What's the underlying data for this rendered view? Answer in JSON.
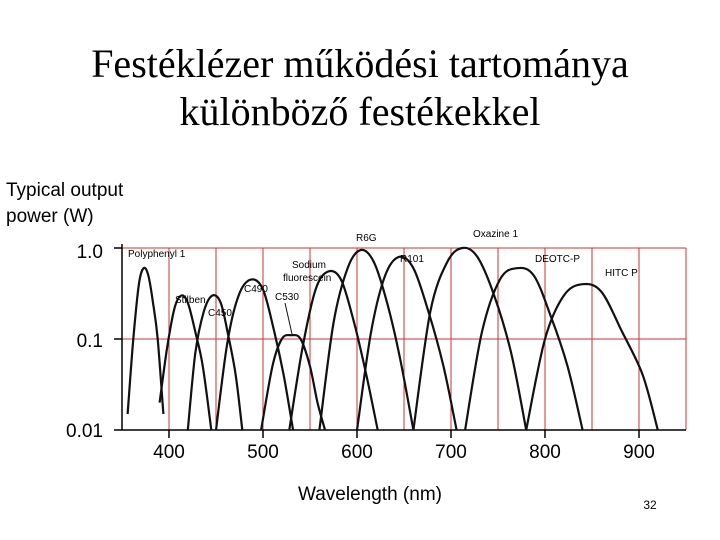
{
  "slide": {
    "title_line1": "Festéklézer működési tartománya",
    "title_line2": "különböző festékekkel",
    "page_number": "32"
  },
  "colors": {
    "grid": "#cc3333",
    "curve": "#111111",
    "text": "#000000"
  },
  "chart_data": {
    "type": "line",
    "title": "",
    "ylabel_lines": [
      "Typical output",
      "power (W)"
    ],
    "xlabel": "Wavelength (nm)",
    "yscale": "log",
    "ylim": [
      0.01,
      1.0
    ],
    "xlim": [
      350,
      950
    ],
    "yticks": [
      1.0,
      0.1,
      0.01
    ],
    "ytick_labels": [
      "1.0",
      "0.1",
      "0.01"
    ],
    "xticks": [
      400,
      500,
      600,
      700,
      800,
      900
    ],
    "xtick_labels": [
      "400",
      "500",
      "600",
      "700",
      "800",
      "900"
    ],
    "grid": true,
    "series": [
      {
        "name": "Polyphenyl 1",
        "x": [
          356,
          362,
          368,
          373,
          378,
          383,
          388,
          394
        ],
        "y": [
          0.015,
          0.1,
          0.4,
          0.6,
          0.5,
          0.25,
          0.1,
          0.015
        ]
      },
      {
        "name": "Stilben",
        "x": [
          390,
          398,
          406,
          413,
          420,
          428,
          436,
          445
        ],
        "y": [
          0.02,
          0.08,
          0.22,
          0.3,
          0.25,
          0.12,
          0.05,
          0.01
        ]
      },
      {
        "name": "C450",
        "x": [
          420,
          428,
          437,
          446,
          455,
          463,
          471,
          478
        ],
        "y": [
          0.01,
          0.07,
          0.2,
          0.3,
          0.25,
          0.11,
          0.04,
          0.01
        ]
      },
      {
        "name": "C490",
        "x": [
          450,
          462,
          474,
          487,
          500,
          512,
          522,
          532
        ],
        "y": [
          0.01,
          0.09,
          0.3,
          0.45,
          0.35,
          0.12,
          0.04,
          0.01
        ]
      },
      {
        "name": "C530",
        "x": [
          498,
          510,
          520,
          530,
          540,
          550,
          558,
          566
        ],
        "y": [
          0.01,
          0.05,
          0.1,
          0.11,
          0.1,
          0.05,
          0.02,
          0.01
        ]
      },
      {
        "name": "Sodium fluorescein",
        "x": [
          528,
          542,
          556,
          569,
          583,
          597,
          610,
          622
        ],
        "y": [
          0.01,
          0.08,
          0.35,
          0.55,
          0.45,
          0.15,
          0.04,
          0.01
        ]
      },
      {
        "name": "R6G",
        "x": [
          560,
          575,
          590,
          604,
          618,
          632,
          646,
          660
        ],
        "y": [
          0.01,
          0.15,
          0.6,
          0.95,
          0.7,
          0.25,
          0.06,
          0.01
        ]
      },
      {
        "name": "R101",
        "x": [
          600,
          615,
          630,
          645,
          660,
          676,
          692,
          706
        ],
        "y": [
          0.01,
          0.12,
          0.5,
          0.8,
          0.6,
          0.2,
          0.05,
          0.01
        ]
      },
      {
        "name": "Oxazine 1",
        "x": [
          660,
          678,
          696,
          712,
          728,
          746,
          764,
          780
        ],
        "y": [
          0.01,
          0.2,
          0.7,
          1.0,
          0.8,
          0.3,
          0.07,
          0.01
        ]
      },
      {
        "name": "DEOTC-P",
        "x": [
          715,
          733,
          752,
          770,
          788,
          806,
          824,
          840
        ],
        "y": [
          0.01,
          0.12,
          0.45,
          0.6,
          0.5,
          0.18,
          0.05,
          0.01
        ]
      },
      {
        "name": "HITC-P",
        "x": [
          780,
          800,
          820,
          840,
          860,
          882,
          904,
          920
        ],
        "y": [
          0.01,
          0.1,
          0.3,
          0.4,
          0.33,
          0.12,
          0.04,
          0.01
        ]
      }
    ],
    "dye_labels": [
      "Polyphenyl 1",
      "Stilben",
      "C450",
      "C490",
      "C530",
      "Sodium",
      "fluorescein",
      "R6G",
      "R101",
      "Oxazine 1",
      "DEOTC-P",
      "HITC P"
    ]
  }
}
